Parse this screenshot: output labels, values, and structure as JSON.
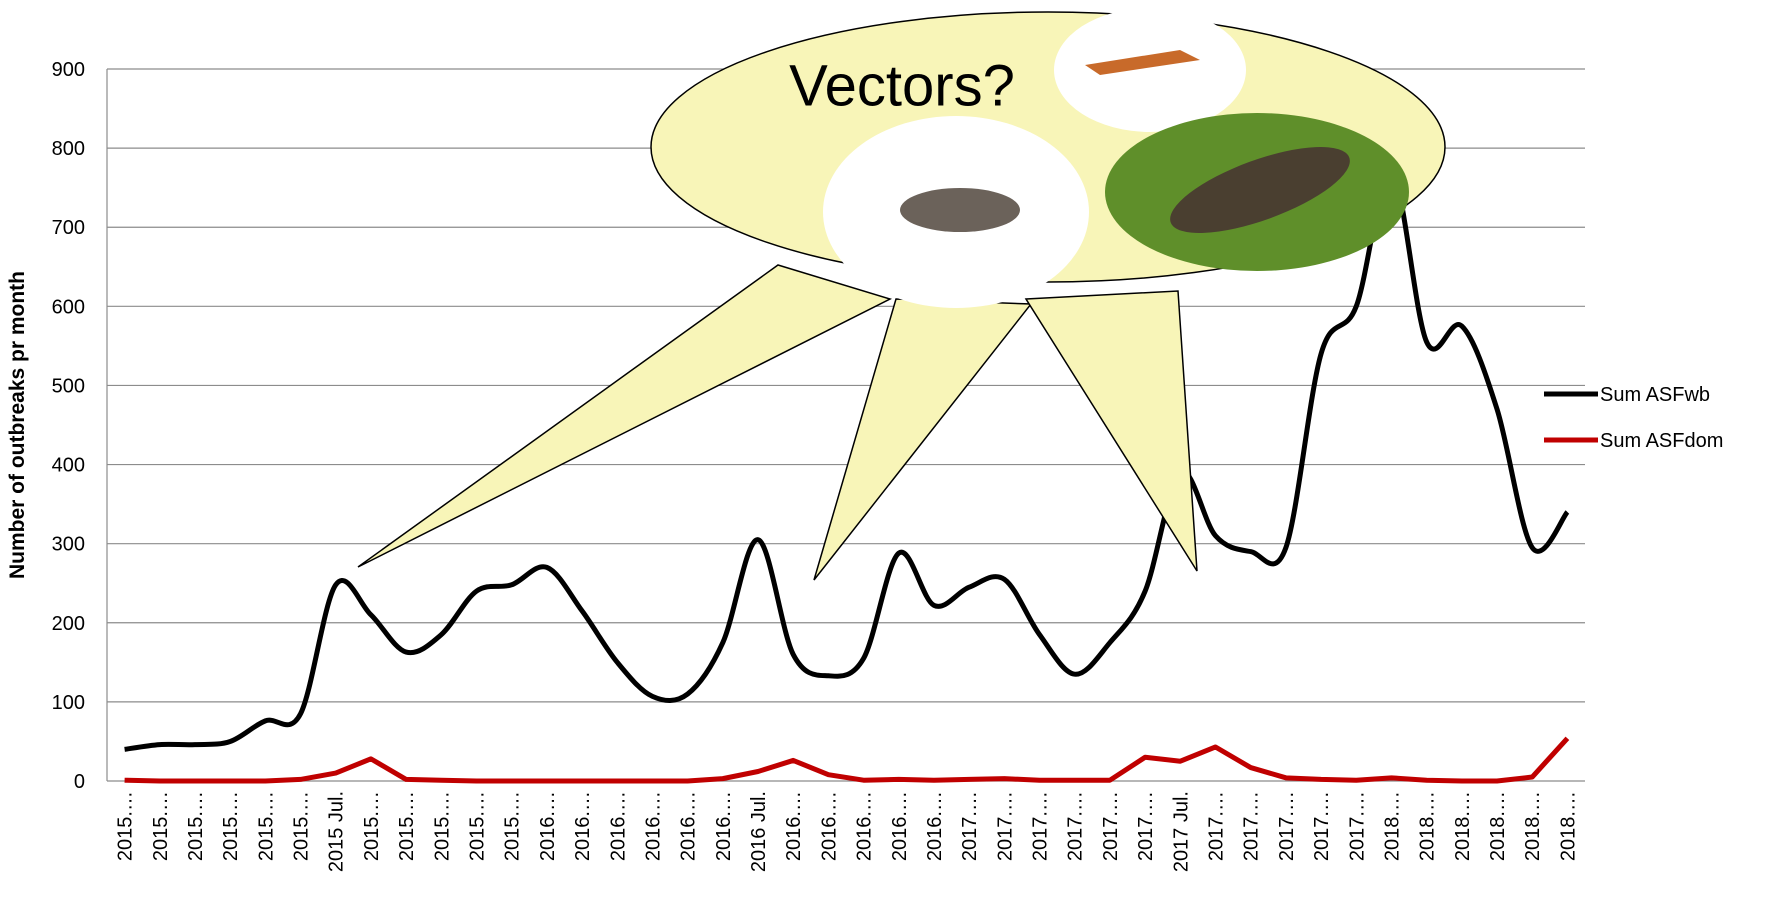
{
  "chart_data": {
    "type": "line",
    "smooth": true,
    "grid": true,
    "legend": "right",
    "y_label": "Number of outbreaks pr month",
    "annotation": "Vectors?",
    "categories": [
      "2015.…",
      "2015.…",
      "2015.…",
      "2015.…",
      "2015.…",
      "2015.…",
      "2015 Jul.",
      "2015.…",
      "2015.…",
      "2015.…",
      "2015.…",
      "2015.…",
      "2016.…",
      "2016.…",
      "2016.…",
      "2016.…",
      "2016.…",
      "2016.…",
      "2016 Jul.",
      "2016.…",
      "2016.…",
      "2016.…",
      "2016.…",
      "2016.…",
      "2017.…",
      "2017.…",
      "2017.…",
      "2017.…",
      "2017.…",
      "2017.…",
      "2017 Jul.",
      "2017.…",
      "2017.…",
      "2017.…",
      "2017.…",
      "2017.…",
      "2018.…",
      "2018.…",
      "2018.…",
      "2018.…",
      "2018.…",
      "2018.…"
    ],
    "series": [
      {
        "name": "Sum ASFwb",
        "color": "#000000",
        "values": [
          40,
          46,
          46,
          50,
          76,
          85,
          248,
          210,
          163,
          185,
          240,
          248,
          270,
          215,
          150,
          107,
          110,
          175,
          305,
          160,
          133,
          155,
          288,
          222,
          245,
          255,
          185,
          135,
          175,
          240,
          390,
          310,
          290,
          295,
          540,
          600,
          770,
          555,
          575,
          470,
          295,
          340
        ]
      },
      {
        "name": "Sum ASFdom",
        "color": "#c00000",
        "values": [
          1,
          0,
          0,
          0,
          0,
          2,
          10,
          28,
          2,
          1,
          0,
          0,
          0,
          0,
          0,
          0,
          0,
          3,
          12,
          26,
          8,
          1,
          2,
          1,
          2,
          3,
          1,
          1,
          1,
          30,
          25,
          43,
          17,
          4,
          2,
          1,
          4,
          1,
          0,
          0,
          5,
          54
        ]
      }
    ],
    "ylim": [
      0,
      900
    ],
    "yticks": [
      0,
      100,
      200,
      300,
      400,
      500,
      600,
      700,
      800,
      900
    ]
  }
}
